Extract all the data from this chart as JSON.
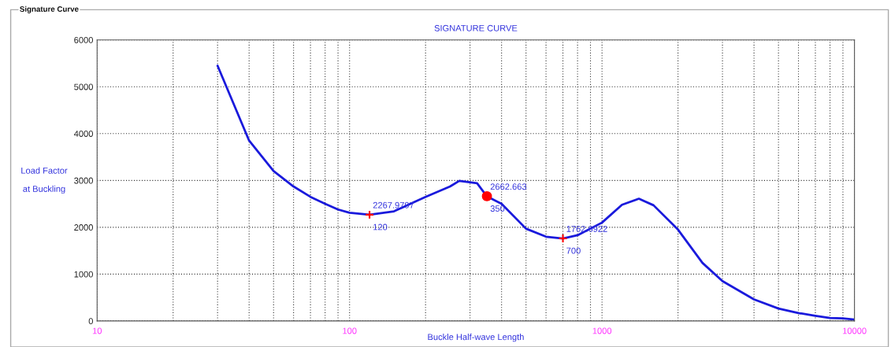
{
  "chart_data": {
    "type": "line",
    "title": "SIGNATURE CURVE",
    "xlabel": "Buckle Half-wave Length",
    "ylabel": "Load Factor\nat Buckling",
    "log": "x",
    "xlim": [
      10,
      10000
    ],
    "xticks": [
      10,
      100,
      1000,
      10000
    ],
    "ylim": [
      0,
      6000
    ],
    "yticks": [
      0,
      1000,
      2000,
      3000,
      4000,
      5000,
      6000
    ],
    "grid": true,
    "series": [
      {
        "color": "#1a1adc",
        "marker": "none",
        "line_style": "solid",
        "x": [
          30,
          40,
          50,
          60,
          70,
          80,
          90,
          100,
          120,
          150,
          200,
          250,
          272,
          320,
          350,
          400,
          500,
          600,
          700,
          800,
          1000,
          1200,
          1400,
          1600,
          2000,
          2500,
          3000,
          4000,
          5000,
          6000,
          7000,
          8000,
          9000,
          10000
        ],
        "values": [
          5450,
          3850,
          3200,
          2870,
          2650,
          2500,
          2380,
          2310,
          2270,
          2340,
          2650,
          2870,
          2990,
          2940,
          2660,
          2500,
          1970,
          1800,
          1760,
          1830,
          2100,
          2480,
          2610,
          2470,
          1950,
          1240,
          850,
          460,
          265,
          170,
          110,
          65,
          55,
          30
        ]
      },
      {
        "type": "scatter",
        "color": "#ff0000",
        "marker": "cross",
        "x": [
          120,
          700
        ],
        "values": [
          2267.9797,
          1762.6922
        ]
      },
      {
        "type": "scatter",
        "color": "#ff0000",
        "marker": "circle",
        "x": [
          350
        ],
        "values": [
          2662.663
        ]
      }
    ],
    "annotations": [
      "Signature Curve",
      {
        "text": "2267.9797",
        "x": 120,
        "y": 2267.9797
      },
      {
        "text": "120",
        "x": 120,
        "y": 2267.9797
      },
      {
        "text": "2662.663",
        "x": 350,
        "y": 2662.663
      },
      {
        "text": "350",
        "x": 350,
        "y": 2662.663
      },
      {
        "text": "1762.6922",
        "x": 700,
        "y": 1762.6922
      },
      {
        "text": "700",
        "x": 700,
        "y": 1762.6922
      }
    ]
  }
}
